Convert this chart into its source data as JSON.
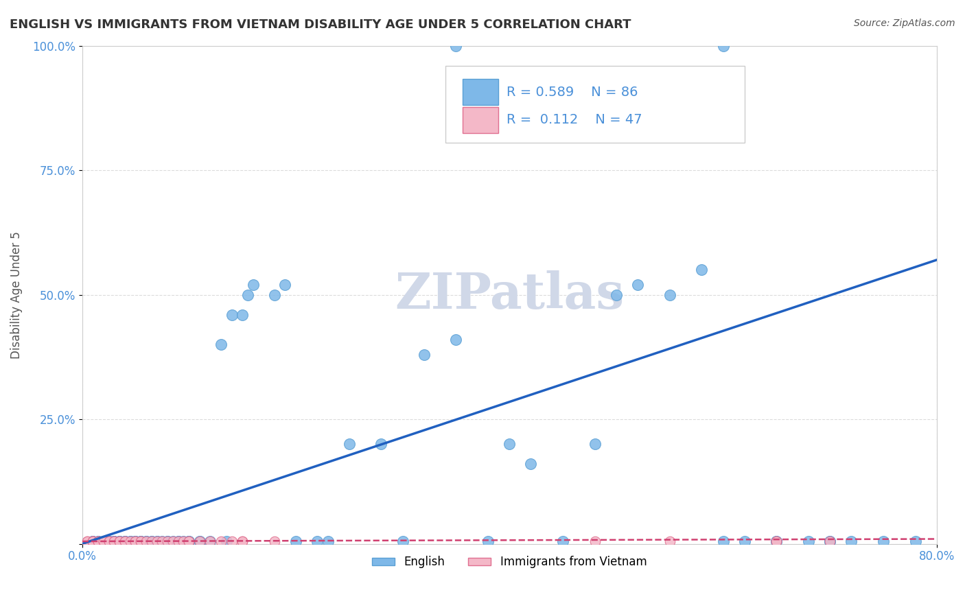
{
  "title": "ENGLISH VS IMMIGRANTS FROM VIETNAM DISABILITY AGE UNDER 5 CORRELATION CHART",
  "source": "Source: ZipAtlas.com",
  "ylabel": "Disability Age Under 5",
  "xlabel": "",
  "xlim": [
    0.0,
    0.8
  ],
  "ylim": [
    0.0,
    1.0
  ],
  "xtick_labels": [
    "0.0%",
    "80.0%"
  ],
  "yticks": [
    0.0,
    0.25,
    0.5,
    0.75,
    1.0
  ],
  "ytick_labels": [
    "",
    "25.0%",
    "50.0%",
    "75.0%",
    "100.0%"
  ],
  "english_color": "#7eb8e8",
  "english_edge_color": "#5a9fd4",
  "vietnam_color": "#f4b8c8",
  "vietnam_edge_color": "#e07090",
  "trend_english_color": "#2060c0",
  "trend_vietnam_color": "#d04070",
  "R_english": 0.589,
  "N_english": 86,
  "R_vietnam": 0.112,
  "N_vietnam": 47,
  "slope_eng": 0.7125,
  "intercept_eng": 0.0,
  "slope_viet": 0.006,
  "intercept_viet": 0.005,
  "english_x": [
    0.01,
    0.01,
    0.01,
    0.015,
    0.015,
    0.02,
    0.02,
    0.02,
    0.02,
    0.02,
    0.025,
    0.025,
    0.025,
    0.03,
    0.03,
    0.03,
    0.035,
    0.035,
    0.035,
    0.04,
    0.04,
    0.04,
    0.045,
    0.045,
    0.05,
    0.05,
    0.05,
    0.055,
    0.055,
    0.055,
    0.06,
    0.06,
    0.065,
    0.065,
    0.07,
    0.07,
    0.075,
    0.08,
    0.08,
    0.085,
    0.09,
    0.09,
    0.095,
    0.1,
    0.1,
    0.1,
    0.11,
    0.11,
    0.12,
    0.13,
    0.135,
    0.14,
    0.15,
    0.155,
    0.16,
    0.18,
    0.19,
    0.2,
    0.22,
    0.23,
    0.25,
    0.28,
    0.3,
    0.32,
    0.35,
    0.38,
    0.4,
    0.42,
    0.45,
    0.48,
    0.5,
    0.52,
    0.55,
    0.58,
    0.6,
    0.62,
    0.65,
    0.68,
    0.7,
    0.72,
    0.75,
    0.78,
    0.35,
    0.6,
    0.65,
    0.7
  ],
  "english_y": [
    0.005,
    0.005,
    0.005,
    0.005,
    0.005,
    0.005,
    0.005,
    0.005,
    0.005,
    0.005,
    0.005,
    0.005,
    0.005,
    0.005,
    0.005,
    0.005,
    0.005,
    0.005,
    0.005,
    0.005,
    0.005,
    0.005,
    0.005,
    0.005,
    0.005,
    0.005,
    0.005,
    0.005,
    0.005,
    0.005,
    0.005,
    0.005,
    0.005,
    0.005,
    0.005,
    0.005,
    0.005,
    0.005,
    0.005,
    0.005,
    0.005,
    0.005,
    0.005,
    0.005,
    0.005,
    0.005,
    0.005,
    0.005,
    0.005,
    0.4,
    0.005,
    0.46,
    0.46,
    0.5,
    0.52,
    0.5,
    0.52,
    0.005,
    0.005,
    0.005,
    0.2,
    0.2,
    0.005,
    0.38,
    0.41,
    0.005,
    0.2,
    0.16,
    0.005,
    0.2,
    0.5,
    0.52,
    0.5,
    0.55,
    0.005,
    0.005,
    0.005,
    0.005,
    0.005,
    0.005,
    0.005,
    0.005,
    1.0,
    1.0,
    0.005,
    0.005
  ],
  "vietnam_x": [
    0.005,
    0.005,
    0.01,
    0.01,
    0.01,
    0.01,
    0.015,
    0.015,
    0.015,
    0.02,
    0.02,
    0.02,
    0.025,
    0.025,
    0.03,
    0.03,
    0.035,
    0.035,
    0.04,
    0.04,
    0.045,
    0.05,
    0.05,
    0.055,
    0.055,
    0.06,
    0.065,
    0.07,
    0.075,
    0.08,
    0.085,
    0.09,
    0.095,
    0.1,
    0.1,
    0.11,
    0.12,
    0.13,
    0.14,
    0.15,
    0.48,
    0.15,
    0.18,
    0.55,
    0.65,
    0.65,
    0.7
  ],
  "vietnam_y": [
    0.005,
    0.005,
    0.005,
    0.005,
    0.005,
    0.005,
    0.005,
    0.005,
    0.005,
    0.005,
    0.005,
    0.005,
    0.005,
    0.005,
    0.005,
    0.005,
    0.005,
    0.005,
    0.005,
    0.005,
    0.005,
    0.005,
    0.005,
    0.005,
    0.005,
    0.005,
    0.005,
    0.005,
    0.005,
    0.005,
    0.005,
    0.005,
    0.005,
    0.005,
    0.005,
    0.005,
    0.005,
    0.005,
    0.005,
    0.005,
    0.005,
    0.005,
    0.005,
    0.005,
    0.005,
    0.005,
    0.005
  ],
  "background_color": "#ffffff",
  "grid_color": "#cccccc",
  "axis_color": "#cccccc",
  "watermark_text": "ZIPatlas",
  "watermark_color": "#d0d8e8",
  "label_english": "English",
  "label_vietnam": "Immigrants from Vietnam"
}
